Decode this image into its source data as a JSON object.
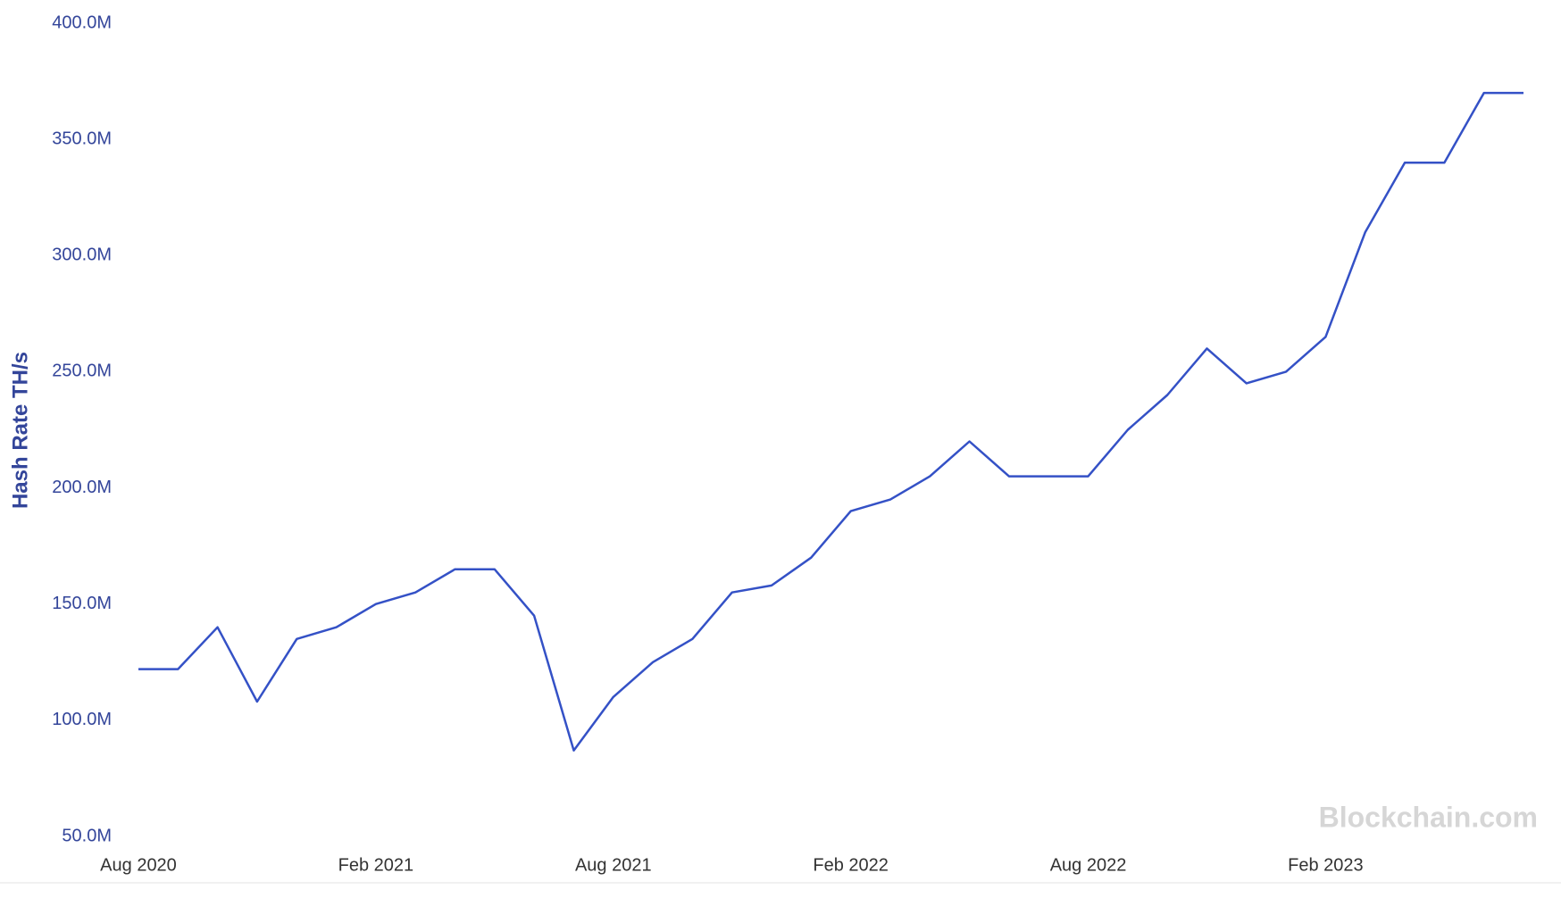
{
  "chart_data": {
    "type": "line",
    "y_label": "Hash Rate TH/s",
    "watermark": "Blockchain.com",
    "x": [
      "2020-08",
      "2020-09",
      "2020-10",
      "2020-11",
      "2020-12",
      "2021-01",
      "2021-02",
      "2021-03",
      "2021-04",
      "2021-05",
      "2021-06",
      "2021-07",
      "2021-08",
      "2021-09",
      "2021-10",
      "2021-11",
      "2021-12",
      "2022-01",
      "2022-02",
      "2022-03",
      "2022-04",
      "2022-05",
      "2022-06",
      "2022-07",
      "2022-08",
      "2022-09",
      "2022-10",
      "2022-11",
      "2022-12",
      "2023-01",
      "2023-02",
      "2023-03",
      "2023-04",
      "2023-05",
      "2023-06",
      "2023-07"
    ],
    "series": [
      {
        "name": "Hash Rate",
        "color": "#3451c6",
        "values": [
          122,
          122,
          140,
          108,
          135,
          140,
          150,
          155,
          165,
          165,
          145,
          87,
          110,
          125,
          135,
          155,
          158,
          170,
          190,
          195,
          205,
          220,
          205,
          205,
          205,
          225,
          240,
          260,
          245,
          250,
          265,
          310,
          340,
          340,
          370,
          370
        ]
      }
    ],
    "xlim": [
      "2020-08",
      "2023-07"
    ],
    "xticks": [
      {
        "value": "2020-08",
        "label": "Aug 2020"
      },
      {
        "value": "2021-02",
        "label": "Feb 2021"
      },
      {
        "value": "2021-08",
        "label": "Aug 2021"
      },
      {
        "value": "2022-02",
        "label": "Feb 2022"
      },
      {
        "value": "2022-08",
        "label": "Aug 2022"
      },
      {
        "value": "2023-02",
        "label": "Feb 2023"
      }
    ],
    "ylim": [
      50,
      400
    ],
    "yticks": [
      {
        "value": 50,
        "label": "50.0M"
      },
      {
        "value": 100,
        "label": "100.0M"
      },
      {
        "value": 150,
        "label": "150.0M"
      },
      {
        "value": 200,
        "label": "200.0M"
      },
      {
        "value": 250,
        "label": "250.0M"
      },
      {
        "value": 300,
        "label": "300.0M"
      },
      {
        "value": 350,
        "label": "350.0M"
      },
      {
        "value": 400,
        "label": "400.0M"
      }
    ],
    "grid": false
  }
}
